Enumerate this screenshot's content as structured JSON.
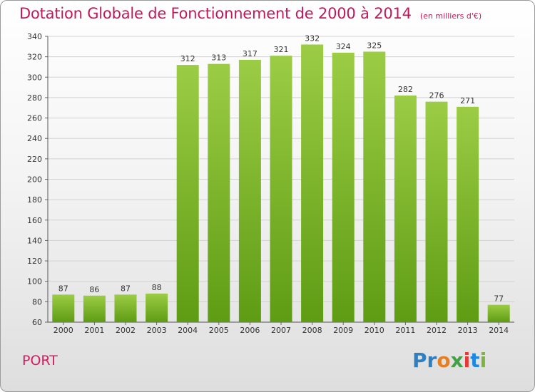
{
  "header": {
    "title": "Dotation Globale de Fonctionnement de 2000 à 2014",
    "unit": "(en milliers d'€)"
  },
  "footer": {
    "place": "PORT",
    "logo_text": "Proxiti"
  },
  "colors": {
    "bar_top": "#9ccc45",
    "bar_bottom": "#5e9c14",
    "title": "#c2185b",
    "logo_letters": [
      "#2f7fc1",
      "#2f7fc1",
      "#e67e22",
      "#43a047",
      "#e53935",
      "#1e88e5",
      "#7cb342"
    ]
  },
  "chart_data": {
    "type": "bar",
    "categories": [
      "2000",
      "2001",
      "2002",
      "2003",
      "2004",
      "2005",
      "2006",
      "2007",
      "2008",
      "2009",
      "2010",
      "2011",
      "2012",
      "2013",
      "2014"
    ],
    "values": [
      87,
      86,
      87,
      88,
      312,
      313,
      317,
      321,
      332,
      324,
      325,
      282,
      276,
      271,
      77
    ],
    "title": "Dotation Globale de Fonctionnement de 2000 à 2014",
    "xlabel": "",
    "ylabel": "",
    "ylim": [
      60,
      340
    ],
    "yticks": [
      60,
      80,
      100,
      120,
      140,
      160,
      180,
      200,
      220,
      240,
      260,
      280,
      300,
      320,
      340
    ],
    "grid": true
  }
}
